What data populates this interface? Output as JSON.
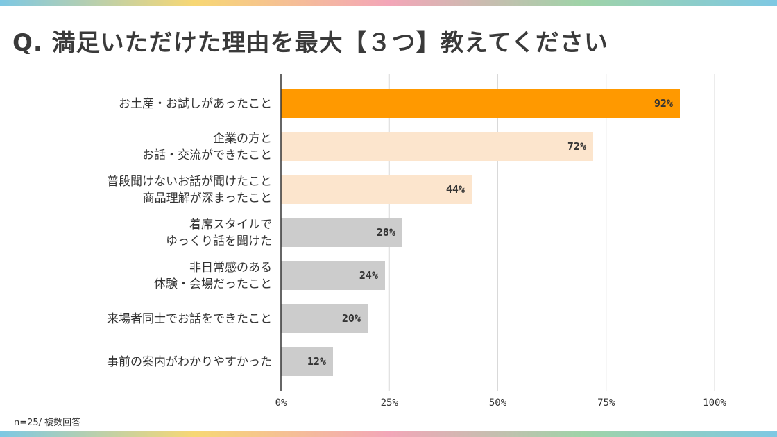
{
  "title": "Q. 満足いただけた理由を最大【３つ】教えてください",
  "footnote": "n=25/ 複数回答",
  "colors": {
    "top": "#FF9900",
    "middle": "#FCE5CD",
    "rest": "#CCCCCC",
    "grid": "#D9D9D9",
    "axis": "#333333"
  },
  "chart_data": {
    "type": "bar",
    "orientation": "horizontal",
    "categories": [
      [
        "お土産・お試しがあったこと"
      ],
      [
        "企業の方と",
        "お話・交流ができたこと"
      ],
      [
        "普段聞けないお話が聞けたこと",
        "商品理解が深まったこと"
      ],
      [
        "着席スタイルで",
        "ゆっくり話を聞けた"
      ],
      [
        "非日常感のある",
        "体験・会場だったこと"
      ],
      [
        "来場者同士でお話をできたこと"
      ],
      [
        "事前の案内がわかりやすかった"
      ]
    ],
    "values": [
      92,
      72,
      44,
      28,
      24,
      20,
      12
    ],
    "value_labels": [
      "92%",
      "72%",
      "44%",
      "28%",
      "24%",
      "20%",
      "12%"
    ],
    "bar_color_keys": [
      "top",
      "middle",
      "middle",
      "rest",
      "rest",
      "rest",
      "rest"
    ],
    "xlim": [
      0,
      100
    ],
    "ticks": [
      0,
      25,
      50,
      75,
      100
    ],
    "tick_labels": [
      "0%",
      "25%",
      "50%",
      "75%",
      "100%"
    ],
    "grid": true
  }
}
